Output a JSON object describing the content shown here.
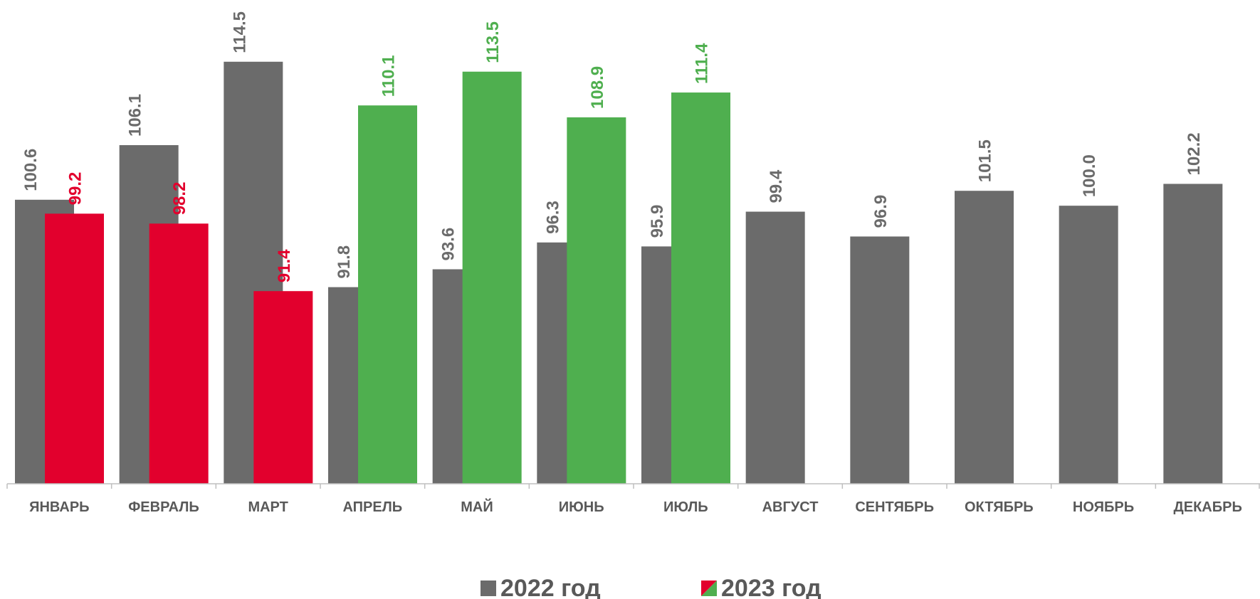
{
  "colors": {
    "grey": "#6b6b6b",
    "red": "#e2002d",
    "green": "#4faf4f",
    "axis": "#bfbfbf",
    "tick_text": "#595959"
  },
  "legend": {
    "series_2022": "2022 год",
    "series_2023": "2023 год"
  },
  "chart_data": {
    "type": "bar",
    "categories": [
      "ЯНВАРЬ",
      "ФЕВРАЛЬ",
      "МАРТ",
      "АПРЕЛЬ",
      "МАЙ",
      "ИЮНЬ",
      "ИЮЛЬ",
      "АВГУСТ",
      "СЕНТЯБРЬ",
      "ОКТЯБРЬ",
      "НОЯБРЬ",
      "ДЕКАБРЬ"
    ],
    "series": [
      {
        "name": "2022 год",
        "color": "#6b6b6b",
        "values": [
          100.6,
          106.1,
          114.5,
          91.8,
          93.6,
          96.3,
          95.9,
          99.4,
          96.9,
          101.5,
          100.0,
          102.2
        ],
        "labels": [
          "100.6",
          "106.1",
          "114.5",
          "91.8",
          "93.6",
          "96.3",
          "95.9",
          "99.4",
          "96.9",
          "101.5",
          "100.0",
          "102.2"
        ]
      },
      {
        "name": "2023 год",
        "values": [
          99.2,
          98.2,
          91.4,
          110.1,
          113.5,
          108.9,
          111.4,
          null,
          null,
          null,
          null,
          null
        ],
        "labels": [
          "99.2",
          "98.2",
          "91.4",
          "110.1",
          "113.5",
          "108.9",
          "111.4",
          null,
          null,
          null,
          null,
          null
        ],
        "colors": [
          "#e2002d",
          "#e2002d",
          "#e2002d",
          "#4faf4f",
          "#4faf4f",
          "#4faf4f",
          "#4faf4f",
          null,
          null,
          null,
          null,
          null
        ]
      }
    ],
    "ylim": [
      72,
      120
    ],
    "axis_visible": false,
    "grid": false,
    "legend_position": "bottom-center",
    "xlabel": "",
    "ylabel": ""
  }
}
